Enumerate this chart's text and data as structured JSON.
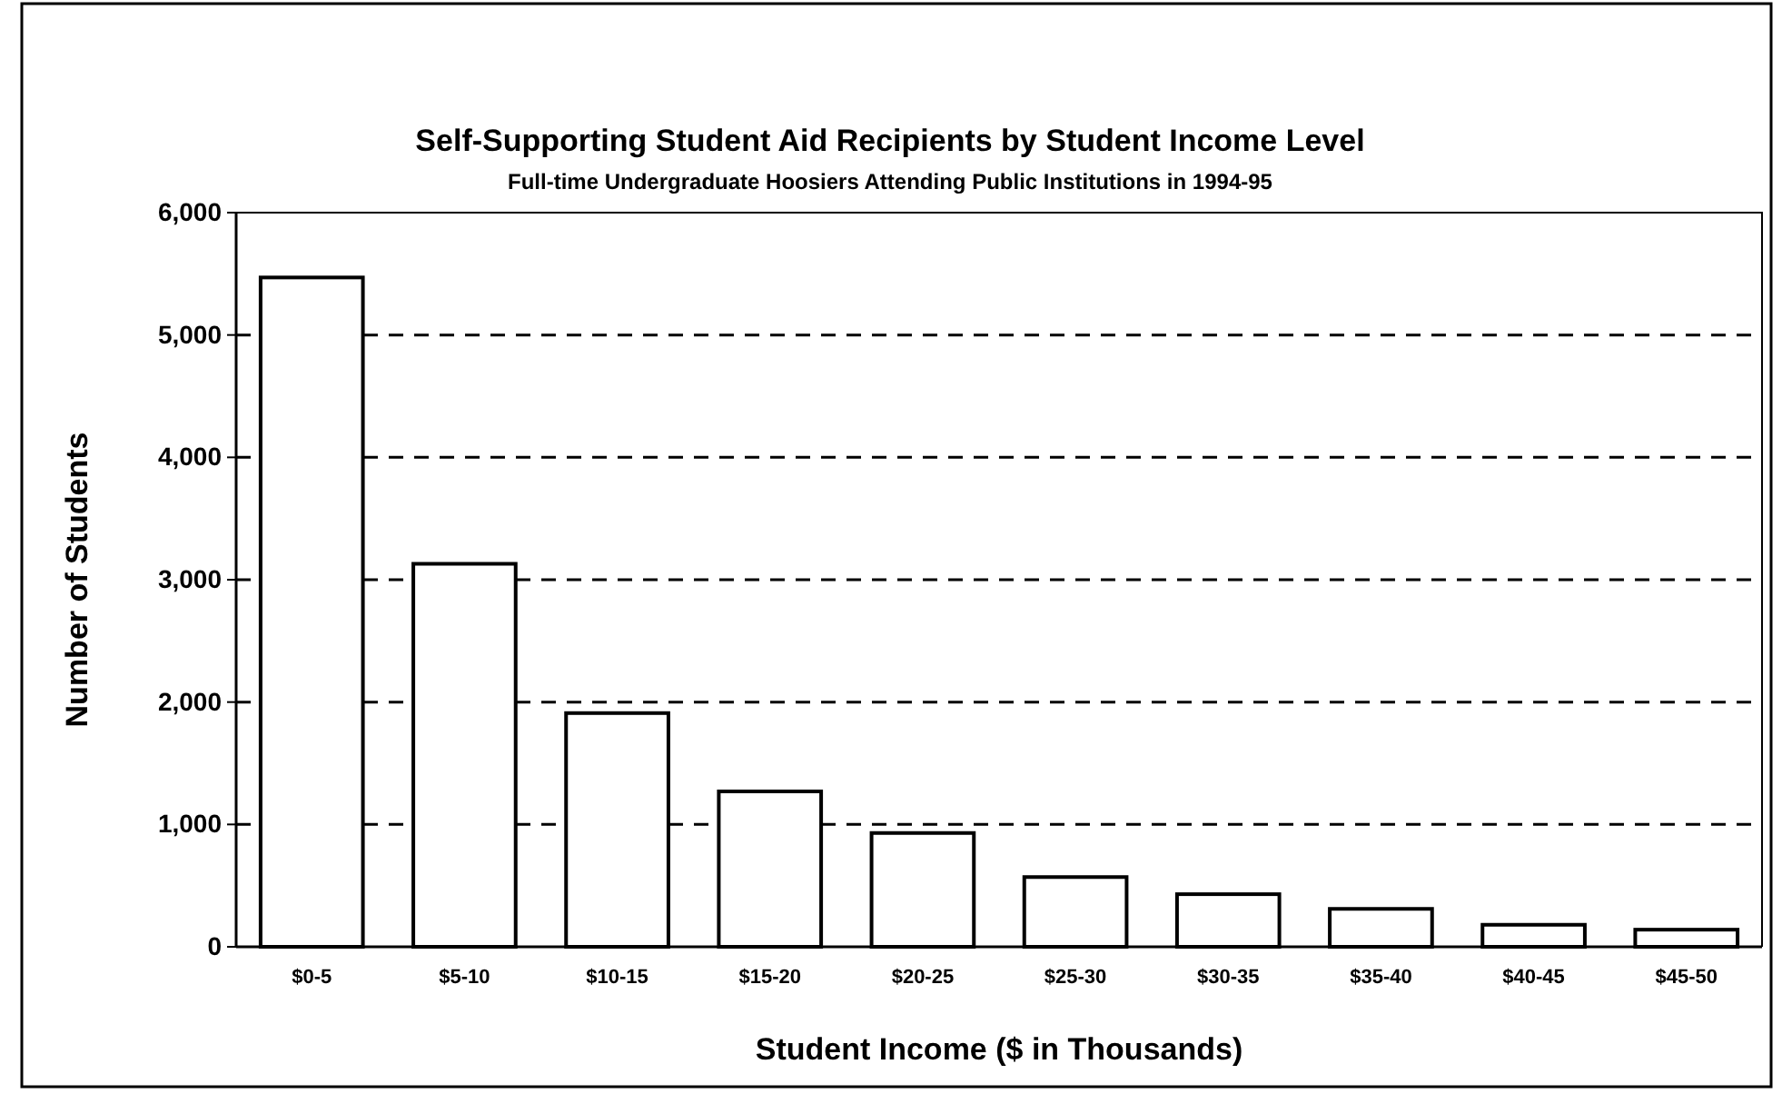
{
  "chart_data": {
    "type": "bar",
    "title": "Self-Supporting Student Aid Recipients by Student Income Level",
    "subtitle": "Full-time Undergraduate Hoosiers Attending Public Institutions in 1994-95",
    "xlabel": "Student Income ($ in Thousands)",
    "ylabel": "Number of Students",
    "categories": [
      "$0-5",
      "$5-10",
      "$10-15",
      "$15-20",
      "$20-25",
      "$25-30",
      "$30-35",
      "$35-40",
      "$40-45",
      "$45-50"
    ],
    "values": [
      5470,
      3130,
      1910,
      1270,
      930,
      570,
      430,
      310,
      180,
      140
    ],
    "color": "#ffffff",
    "ylim": [
      0,
      6000
    ],
    "yticks": [
      {
        "value": 0,
        "label": "0"
      },
      {
        "value": 1000,
        "label": "1,000"
      },
      {
        "value": 2000,
        "label": "2,000"
      },
      {
        "value": 3000,
        "label": "3,000"
      },
      {
        "value": 4000,
        "label": "4,000"
      },
      {
        "value": 5000,
        "label": "5,000"
      },
      {
        "value": 6000,
        "label": "6,000"
      }
    ],
    "grid": "y",
    "line_style": "dashed"
  }
}
